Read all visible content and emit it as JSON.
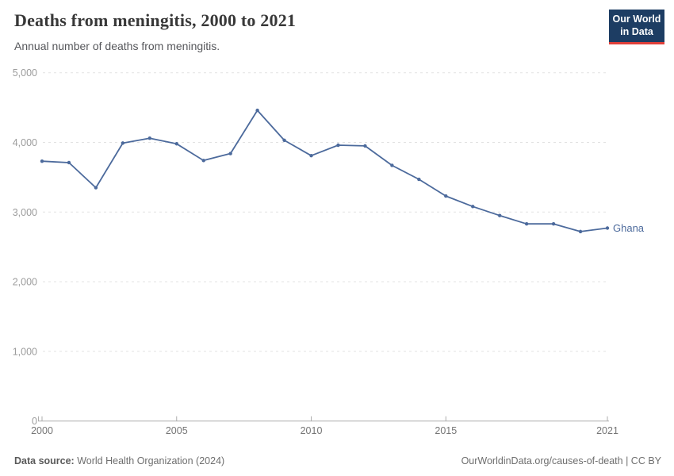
{
  "chart_data": {
    "type": "line",
    "title": "Deaths from meningitis, 2000 to 2021",
    "subtitle": "Annual number of deaths from meningitis.",
    "xlabel": "",
    "ylabel": "",
    "ylim": [
      0,
      5000
    ],
    "xlim": [
      2000,
      2021
    ],
    "grid": "horizontal-dashed",
    "legend_position": "end-of-line-label",
    "yticks": [
      {
        "value": 0,
        "label": "0"
      },
      {
        "value": 1000,
        "label": "1,000"
      },
      {
        "value": 2000,
        "label": "2,000"
      },
      {
        "value": 3000,
        "label": "3,000"
      },
      {
        "value": 4000,
        "label": "4,000"
      },
      {
        "value": 5000,
        "label": "5,000"
      }
    ],
    "xticks": [
      {
        "value": 2000,
        "label": "2000"
      },
      {
        "value": 2005,
        "label": "2005"
      },
      {
        "value": 2010,
        "label": "2010"
      },
      {
        "value": 2015,
        "label": "2015"
      },
      {
        "value": 2021,
        "label": "2021"
      }
    ],
    "series": [
      {
        "name": "Ghana",
        "color": "#4C6A9C",
        "x": [
          2000,
          2001,
          2002,
          2003,
          2004,
          2005,
          2006,
          2007,
          2008,
          2009,
          2010,
          2011,
          2012,
          2013,
          2014,
          2015,
          2016,
          2017,
          2018,
          2019,
          2020,
          2021
        ],
        "values": [
          3730,
          3710,
          3350,
          3990,
          4060,
          3980,
          3740,
          3840,
          4460,
          4030,
          3810,
          3960,
          3950,
          3670,
          3470,
          3230,
          3080,
          2950,
          2830,
          2830,
          2720,
          2770
        ]
      }
    ]
  },
  "logo": {
    "line1": "Our World",
    "line2": "in Data",
    "bg_color": "#1d3d63",
    "accent_color": "#e0403a"
  },
  "footer": {
    "source_label": "Data source:",
    "source_text": " World Health Organization (2024)",
    "credit": "OurWorldinData.org/causes-of-death | CC BY"
  },
  "colors": {
    "gridline": "#e2e2e2",
    "axis": "#adadad",
    "y_tick_text": "#9c9c9c",
    "x_tick_text": "#757575",
    "title_text": "#383838",
    "subtitle_text": "#56575b"
  }
}
